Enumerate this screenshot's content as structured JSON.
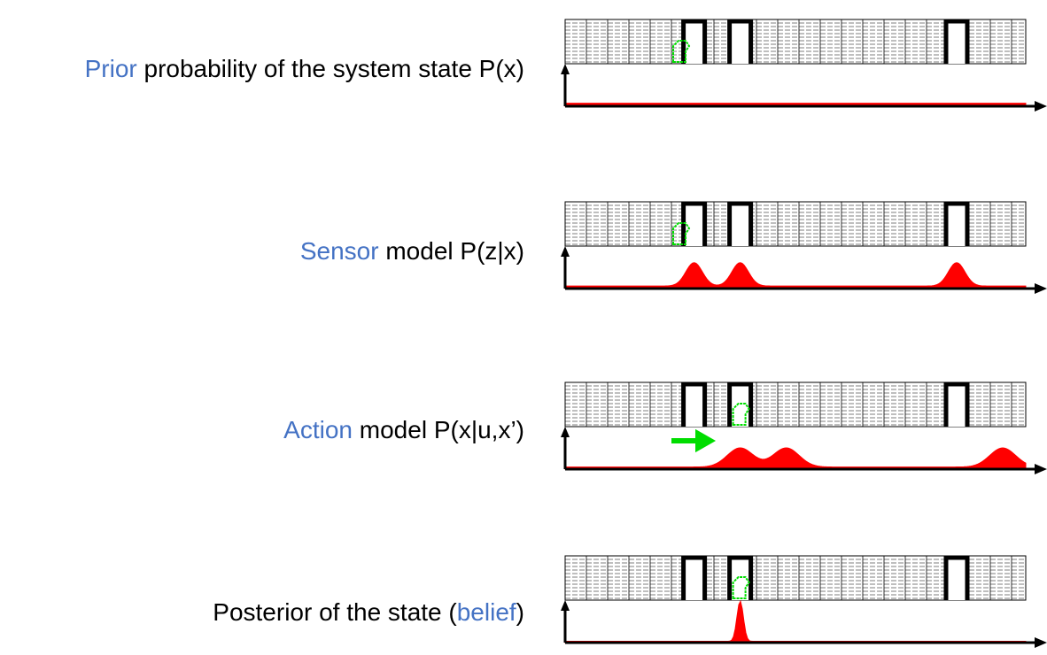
{
  "rows": [
    {
      "label_highlight": "Prior",
      "label_rest": " probability of the system state P(x)",
      "curve": "uniform",
      "robot_pos": 0.25,
      "show_arrow": false
    },
    {
      "label_highlight": "Sensor",
      "label_rest": " model P(z|x)",
      "curve": "doors",
      "robot_pos": 0.25,
      "show_arrow": false
    },
    {
      "label_highlight": "Action",
      "label_rest": " model P(x|u,x’)",
      "curve": "doors_shifted",
      "robot_pos": 0.38,
      "show_arrow": true
    },
    {
      "label_pre": "Posterior of the state (",
      "label_highlight": "belief",
      "label_post": ")",
      "curve": "peak",
      "robot_pos": 0.38,
      "show_arrow": false
    }
  ],
  "colors": {
    "accent": "#4472c4",
    "curve": "#ff0000",
    "robot": "#00dd00",
    "axis": "#000000"
  }
}
